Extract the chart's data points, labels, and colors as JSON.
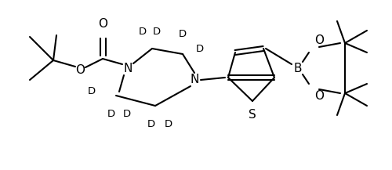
{
  "figsize": [
    5.0,
    2.17
  ],
  "dpi": 100,
  "xlim": [
    0,
    500
  ],
  "ylim": [
    0,
    217
  ],
  "lw": 1.5,
  "fs": 11,
  "fs_d": 9.5
}
